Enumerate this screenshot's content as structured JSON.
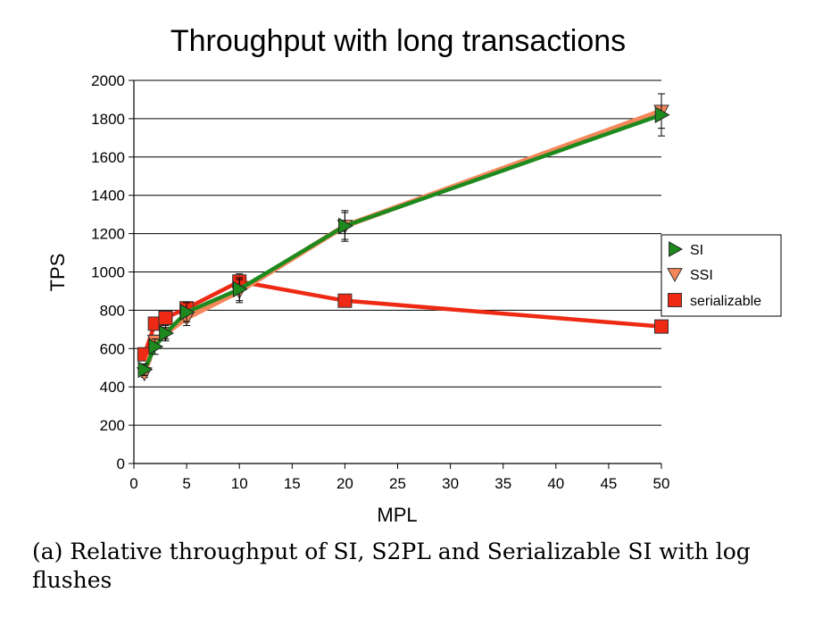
{
  "caption": "(a) Relative throughput of SI, S2PL and Serializable SI with log flushes",
  "chart_data": {
    "type": "line",
    "title": "Throughput with long transactions",
    "xlabel": "MPL",
    "ylabel": "TPS",
    "xlim": [
      0,
      50
    ],
    "ylim": [
      0,
      2000
    ],
    "xticks": [
      0,
      5,
      10,
      15,
      20,
      25,
      30,
      35,
      40,
      45,
      50
    ],
    "yticks": [
      0,
      200,
      400,
      600,
      800,
      1000,
      1200,
      1400,
      1600,
      1800,
      2000
    ],
    "grid": "horizontal",
    "legend_position": "right",
    "series": [
      {
        "name": "serializable",
        "color": "#ee2a14",
        "marker": "square",
        "x": [
          1,
          2,
          3,
          5,
          10,
          20,
          50
        ],
        "y": [
          570,
          730,
          760,
          810,
          950,
          850,
          715
        ],
        "err": [
          20,
          25,
          20,
          25,
          40,
          30,
          15
        ]
      },
      {
        "name": "SSI",
        "color": "#f4875a",
        "marker": "triangle-down",
        "x": [
          1,
          2,
          3,
          5,
          10,
          20,
          50
        ],
        "y": [
          470,
          640,
          680,
          760,
          900,
          1240,
          1840
        ],
        "err": [
          20,
          30,
          30,
          40,
          60,
          80,
          90
        ]
      },
      {
        "name": "SI",
        "color": "#1e8a1e",
        "marker": "triangle-right",
        "x": [
          1,
          2,
          3,
          5,
          10,
          20,
          50
        ],
        "y": [
          490,
          610,
          680,
          790,
          910,
          1240,
          1820
        ],
        "err": [
          30,
          40,
          40,
          50,
          60,
          70,
          110
        ]
      }
    ],
    "legend_order": [
      "SI",
      "SSI",
      "serializable"
    ]
  }
}
